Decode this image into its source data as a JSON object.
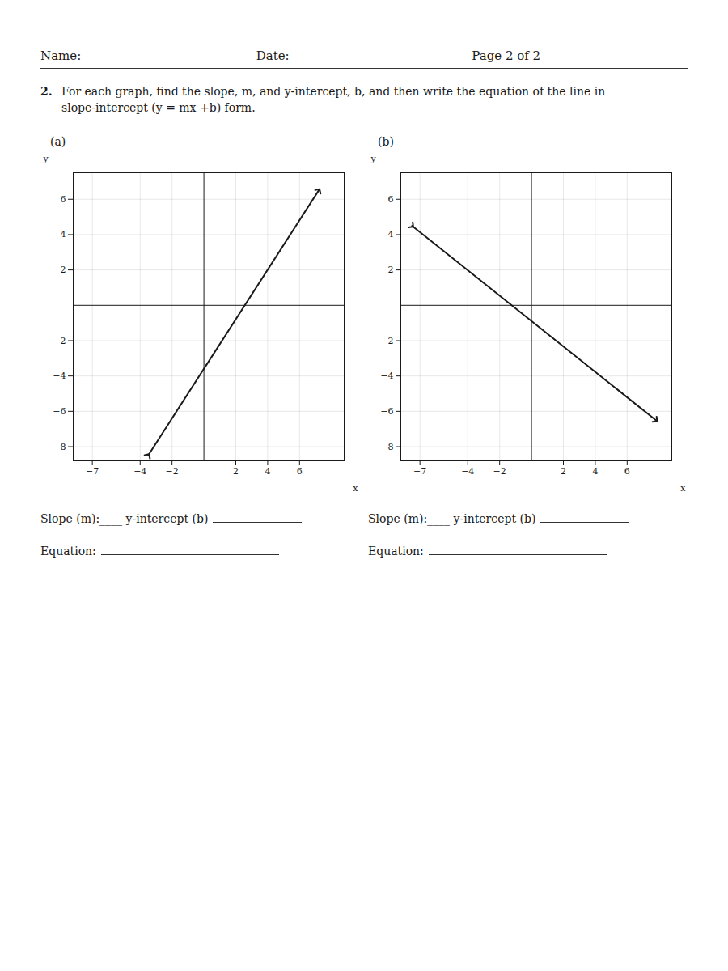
{
  "annotations": [
    "Name:",
    "Date:",
    "Page 2 of 2",
    "2.",
    "For each graph, find the slope, m, and y-intercept, b, and then write the equation of the line in",
    "slope-intercept (y = mx +b) form."
  ],
  "chart_data": [
    {
      "type": "line",
      "title": "(a)",
      "xlabel": "x",
      "ylabel": "y",
      "x": [
        -3.5,
        7.2
      ],
      "values": [
        -8.5,
        6.5
      ],
      "color": "#1a1a1a",
      "marker": "arrow",
      "xlim": [
        -8.2,
        8.8
      ],
      "ylim": [
        -8.8,
        7.5
      ],
      "xticks": [
        -7,
        -4,
        -2,
        2,
        4,
        6
      ],
      "yticks": [
        -8,
        -6,
        -4,
        -2,
        2,
        4,
        6
      ],
      "grid": true,
      "annotations": [
        "Slope (m):____ y-intercept (b)",
        "Equation:"
      ]
    },
    {
      "type": "line",
      "title": "(b)",
      "xlabel": "x",
      "ylabel": "y",
      "x": [
        -7.5,
        7.8
      ],
      "values": [
        4.5,
        -6.5
      ],
      "color": "#1a1a1a",
      "marker": "arrow",
      "xlim": [
        -8.2,
        8.8
      ],
      "ylim": [
        -8.8,
        7.5
      ],
      "xticks": [
        -7,
        -4,
        -2,
        2,
        4,
        6
      ],
      "yticks": [
        -8,
        -6,
        -4,
        -2,
        2,
        4,
        6
      ],
      "grid": true,
      "annotations": [
        "Slope (m):____ y-intercept (b)",
        "Equation:"
      ]
    }
  ]
}
